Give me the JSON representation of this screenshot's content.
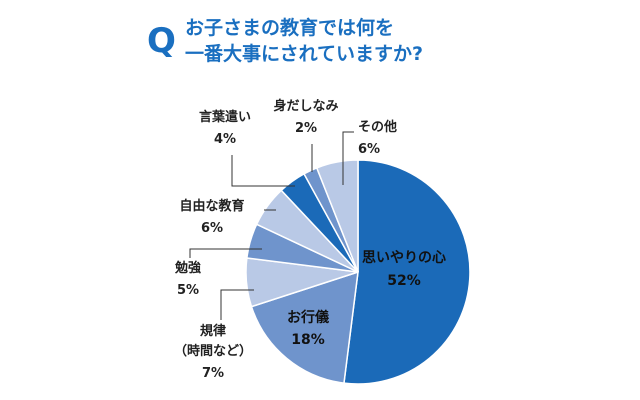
{
  "question_mark": "Q",
  "title_line1": "お子さまの教育では何を",
  "title_line2": "一番大事にされていますか?",
  "chart_data": {
    "type": "pie",
    "start": "12 o'clock",
    "direction": "clockwise",
    "slices": [
      {
        "label": "思いやりの心",
        "value": 52,
        "value_text": "52%",
        "color": "#1b6ab8"
      },
      {
        "label": "お行儀",
        "value": 18,
        "value_text": "18%",
        "color": "#6f94cc"
      },
      {
        "label": "規律",
        "label_line2": "（時間など）",
        "value": 7,
        "value_text": "7%",
        "color": "#b9c9e6"
      },
      {
        "label": "勉強",
        "value": 5,
        "value_text": "5%",
        "color": "#6f94cc"
      },
      {
        "label": "自由な教育",
        "value": 6,
        "value_text": "6%",
        "color": "#b9c9e6"
      },
      {
        "label": "言葉遣い",
        "value": 4,
        "value_text": "4%",
        "color": "#1b6ab8"
      },
      {
        "label": "身だしなみ",
        "value": 2,
        "value_text": "2%",
        "color": "#6f94cc"
      },
      {
        "label": "その他",
        "value": 6,
        "value_text": "6%",
        "color": "#b9c9e6"
      }
    ]
  }
}
